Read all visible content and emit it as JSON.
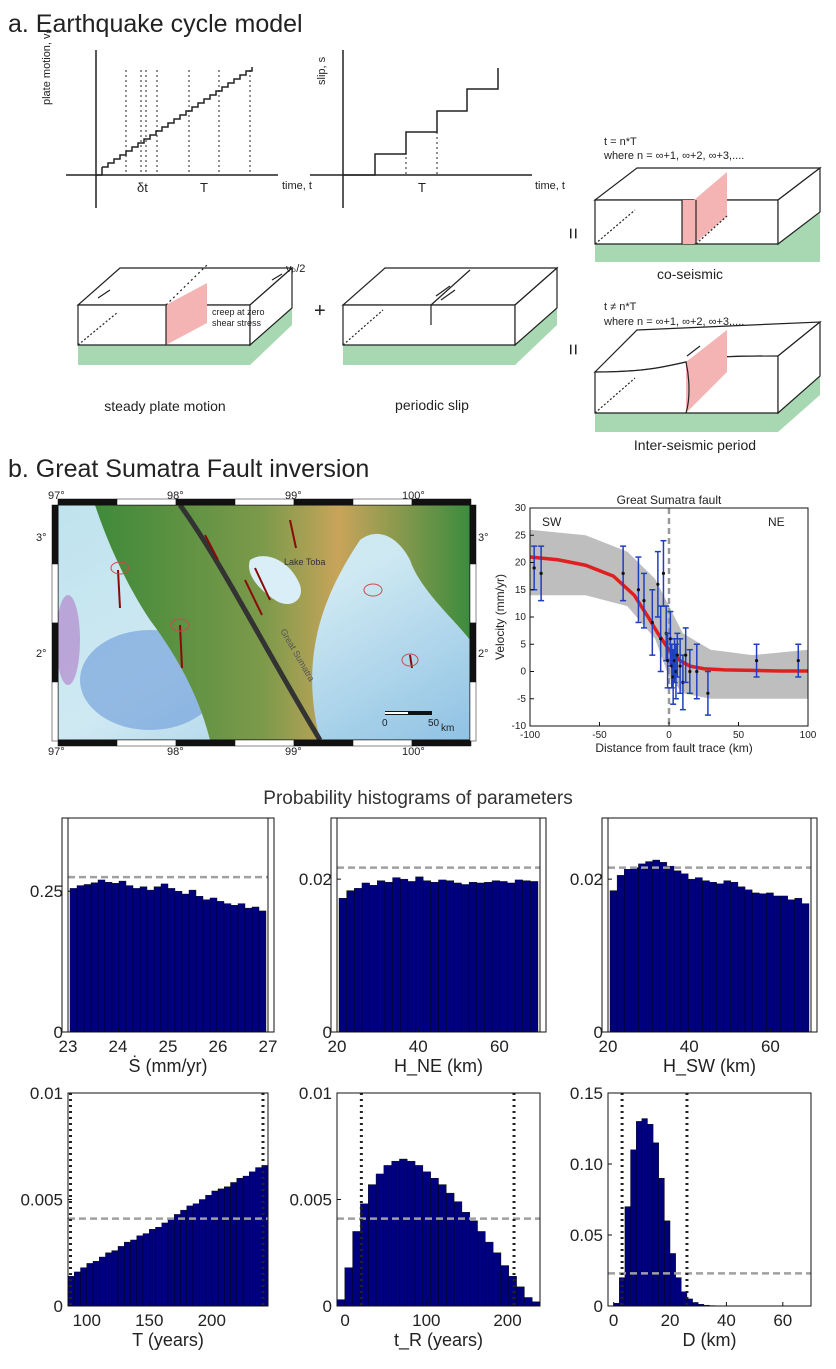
{
  "panel_a": {
    "title": "a. Earthquake cycle model",
    "graph1": {
      "ylabel": "plate motion, vₚ",
      "xlabel": "time, t",
      "dt_label": "δt",
      "T_label": "T"
    },
    "graph2": {
      "ylabel": "slip, s",
      "xlabel": "time, t",
      "T_label": "T"
    },
    "box_labels": {
      "steady": "steady plate motion",
      "periodic": "periodic slip",
      "coseismic": "co-seismic",
      "interseismic": "Inter-seismic period"
    },
    "annotations": {
      "creep1": "creep at zero",
      "creep2": "shear stress",
      "vp2": "vₚ/2"
    },
    "coseismic_eq1": "t = n*T",
    "coseismic_eq2": "where n = ∞+1, ∞+2, ∞+3,....",
    "interseismic_eq1": "t ≠ n*T",
    "interseismic_eq2": "where n = ∞+1, ∞+2, ∞+3,....",
    "operators": {
      "plus": "+",
      "eq1": "=",
      "eq2": "="
    }
  },
  "panel_b": {
    "title": "b. Great Sumatra Fault inversion",
    "map": {
      "lon_labels": [
        "97°",
        "98°",
        "99°",
        "100°"
      ],
      "lat_labels": [
        "3°",
        "2°"
      ],
      "lake_label": "Lake Toba",
      "fault_label": "Great Sumatra",
      "scale_labels": [
        "0",
        "50",
        "km"
      ]
    }
  },
  "velocity_chart": {
    "chart_data": {
      "type": "scatter",
      "title": "Great Sumatra fault",
      "xlabel": "Distance from fault trace (km)",
      "ylabel": "Velocity (mm/yr)",
      "xlim": [
        -100,
        100
      ],
      "ylim": [
        -10,
        30
      ],
      "xticks": [
        -100,
        -50,
        0,
        50,
        100
      ],
      "yticks": [
        -10,
        -5,
        0,
        5,
        10,
        15,
        20,
        25,
        30
      ],
      "side_labels": [
        "SW",
        "NE"
      ],
      "points": [
        {
          "x": -97,
          "y": 19,
          "err": 4
        },
        {
          "x": -92,
          "y": 18,
          "err": 5
        },
        {
          "x": -33,
          "y": 18,
          "err": 5
        },
        {
          "x": -22,
          "y": 15,
          "err": 6
        },
        {
          "x": -18,
          "y": 13,
          "err": 5
        },
        {
          "x": -12,
          "y": 9,
          "err": 6
        },
        {
          "x": -8,
          "y": 16,
          "err": 6
        },
        {
          "x": -6,
          "y": 6,
          "err": 6
        },
        {
          "x": -4,
          "y": 18,
          "err": 6
        },
        {
          "x": -2,
          "y": 7,
          "err": 5
        },
        {
          "x": -1,
          "y": 2,
          "err": 5
        },
        {
          "x": 1,
          "y": 6,
          "err": 5
        },
        {
          "x": 2,
          "y": 1,
          "err": 4
        },
        {
          "x": 3,
          "y": -1,
          "err": 5
        },
        {
          "x": 4,
          "y": 2,
          "err": 4
        },
        {
          "x": 5,
          "y": 0,
          "err": 5
        },
        {
          "x": 6,
          "y": 3,
          "err": 4
        },
        {
          "x": 8,
          "y": 1,
          "err": 5
        },
        {
          "x": 10,
          "y": -2,
          "err": 5
        },
        {
          "x": 12,
          "y": 3,
          "err": 5
        },
        {
          "x": 15,
          "y": 0,
          "err": 4
        },
        {
          "x": 20,
          "y": 0,
          "err": 5
        },
        {
          "x": 28,
          "y": -4,
          "err": 4
        },
        {
          "x": 63,
          "y": 2,
          "err": 3
        },
        {
          "x": 93,
          "y": 2,
          "err": 3
        }
      ],
      "model_curve": [
        [
          -100,
          21
        ],
        [
          -80,
          20.5
        ],
        [
          -60,
          19.5
        ],
        [
          -40,
          17.5
        ],
        [
          -25,
          14
        ],
        [
          -15,
          10
        ],
        [
          -8,
          7
        ],
        [
          0,
          4
        ],
        [
          8,
          2
        ],
        [
          15,
          1
        ],
        [
          25,
          0.5
        ],
        [
          40,
          0.3
        ],
        [
          60,
          0.2
        ],
        [
          80,
          0.1
        ],
        [
          100,
          0.1
        ]
      ],
      "colors": {
        "points": "#1f3fbf",
        "model": "#e02020",
        "ensemble": "#b3b3b3",
        "fault": "#999999"
      }
    }
  },
  "histograms": {
    "title": "Probability histograms of parameters",
    "chart_data": [
      {
        "type": "bar",
        "xlabel": "Ṡ (mm/yr)",
        "xlim": [
          23,
          27
        ],
        "ylim": [
          0,
          0.38
        ],
        "xticks": [
          "23",
          "24",
          "25",
          "26",
          "27"
        ],
        "yticks": [
          "0",
          "0.25"
        ],
        "ytick_vals": [
          0,
          0.25
        ],
        "prior": 0.275,
        "prior_lines": [],
        "values": [
          0.255,
          0.26,
          0.262,
          0.265,
          0.27,
          0.266,
          0.264,
          0.268,
          0.26,
          0.255,
          0.258,
          0.252,
          0.258,
          0.263,
          0.255,
          0.25,
          0.245,
          0.252,
          0.241,
          0.235,
          0.238,
          0.232,
          0.228,
          0.225,
          0.228,
          0.22,
          0.222,
          0.215
        ]
      },
      {
        "type": "bar",
        "xlabel": "H_NE (km)",
        "xlim": [
          20,
          70
        ],
        "ylim": [
          0,
          0.028
        ],
        "xticks": [
          "20",
          "40",
          "60"
        ],
        "yticks": [
          "0",
          "0.02"
        ],
        "ytick_vals": [
          0,
          0.02
        ],
        "prior": 0.0215,
        "prior_lines": [],
        "values": [
          0.0175,
          0.0185,
          0.0188,
          0.0195,
          0.0192,
          0.0198,
          0.0196,
          0.0202,
          0.02,
          0.0197,
          0.0203,
          0.0198,
          0.0196,
          0.0199,
          0.0198,
          0.0195,
          0.0193,
          0.0196,
          0.0195,
          0.0196,
          0.0198,
          0.0197,
          0.0195,
          0.0199,
          0.0198,
          0.0197
        ]
      },
      {
        "type": "bar",
        "xlabel": "H_SW (km)",
        "xlim": [
          20,
          70
        ],
        "ylim": [
          0,
          0.028
        ],
        "xticks": [
          "20",
          "40",
          "60"
        ],
        "yticks": [
          "0",
          "0.02"
        ],
        "ytick_vals": [
          0,
          0.02
        ],
        "prior": 0.0215,
        "prior_lines": [],
        "values": [
          0.0185,
          0.0205,
          0.0213,
          0.0215,
          0.022,
          0.0223,
          0.0225,
          0.0222,
          0.0217,
          0.0211,
          0.0207,
          0.02,
          0.0202,
          0.0198,
          0.0196,
          0.0194,
          0.0198,
          0.0196,
          0.019,
          0.0186,
          0.0182,
          0.0181,
          0.0182,
          0.0178,
          0.0178,
          0.0173,
          0.0175,
          0.0168
        ]
      },
      {
        "type": "bar",
        "xlabel": "T (years)",
        "xlim": [
          85,
          245
        ],
        "ylim": [
          0,
          0.01
        ],
        "xticks": [
          "100",
          "150",
          "200"
        ],
        "xtick_vals": [
          100,
          150,
          200
        ],
        "yticks": [
          "0",
          "0.005",
          "0.01"
        ],
        "ytick_vals": [
          0,
          0.005,
          0.01
        ],
        "prior": 0.0041,
        "prior_lines": [
          87,
          241
        ],
        "values": [
          0.0014,
          0.0016,
          0.0018,
          0.002,
          0.0021,
          0.0023,
          0.0025,
          0.0026,
          0.0028,
          0.003,
          0.0031,
          0.0033,
          0.0034,
          0.0036,
          0.0037,
          0.0039,
          0.0041,
          0.0043,
          0.0045,
          0.0047,
          0.0048,
          0.005,
          0.0052,
          0.0054,
          0.0055,
          0.0056,
          0.0058,
          0.006,
          0.0061,
          0.0063,
          0.0065,
          0.0066
        ]
      },
      {
        "type": "bar",
        "xlabel": "t_R (years)",
        "xlim": [
          -10,
          240
        ],
        "ylim": [
          0,
          0.01
        ],
        "xticks": [
          "0",
          "100",
          "200"
        ],
        "xtick_vals": [
          0,
          100,
          200
        ],
        "yticks": [
          "0",
          "0.005",
          "0.01"
        ],
        "ytick_vals": [
          0,
          0.005,
          0.01
        ],
        "prior": 0.0041,
        "prior_lines": [
          20,
          208
        ],
        "values": [
          0.0003,
          0.0018,
          0.0035,
          0.0048,
          0.0057,
          0.0062,
          0.0066,
          0.0068,
          0.0069,
          0.0068,
          0.0066,
          0.0063,
          0.006,
          0.0057,
          0.0053,
          0.0049,
          0.0044,
          0.004,
          0.0035,
          0.003,
          0.0025,
          0.0019,
          0.0014,
          0.0009,
          0.0004,
          0.0002
        ]
      },
      {
        "type": "bar",
        "xlabel": "D (km)",
        "xlim": [
          -2,
          70
        ],
        "ylim": [
          0,
          0.15
        ],
        "xticks": [
          "0",
          "20",
          "40",
          "60"
        ],
        "xtick_vals": [
          0,
          20,
          40,
          60
        ],
        "yticks": [
          "0",
          "0.05",
          "0.10",
          "0.15"
        ],
        "ytick_vals": [
          0,
          0.05,
          0.1,
          0.15
        ],
        "prior": 0.023,
        "prior_lines": [
          3,
          26
        ],
        "values": [
          0,
          0.002,
          0.02,
          0.07,
          0.11,
          0.13,
          0.132,
          0.128,
          0.115,
          0.09,
          0.06,
          0.037,
          0.02,
          0.01,
          0.005,
          0.0025,
          0.0012,
          0.0006,
          0.0003,
          0.0001,
          0,
          0,
          0,
          0,
          0,
          0,
          0,
          0,
          0,
          0,
          0,
          0,
          0,
          0,
          0,
          0
        ]
      }
    ],
    "colors": {
      "bar": "#00007f",
      "prior": "#a0a0a0"
    }
  }
}
